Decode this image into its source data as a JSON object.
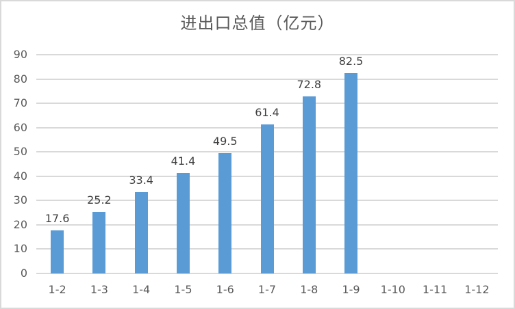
{
  "chart_data": {
    "type": "bar",
    "title": "进出口总值（亿元）",
    "xlabel": "",
    "ylabel": "",
    "categories": [
      "1-2",
      "1-3",
      "1-4",
      "1-5",
      "1-6",
      "1-7",
      "1-8",
      "1-9",
      "1-10",
      "1-11",
      "1-12"
    ],
    "values": [
      17.6,
      25.2,
      33.4,
      41.4,
      49.5,
      61.4,
      72.8,
      82.5,
      null,
      null,
      null
    ],
    "data_labels": [
      "17.6",
      "25.2",
      "33.4",
      "41.4",
      "49.5",
      "61.4",
      "72.8",
      "82.5",
      "",
      "",
      ""
    ],
    "ylim": [
      0,
      90
    ],
    "yticks": [
      0,
      10,
      20,
      30,
      40,
      50,
      60,
      70,
      80,
      90
    ],
    "grid": true,
    "legend": null,
    "bar_color": "#5b9bd5"
  },
  "title": "进出口总值（亿元）"
}
